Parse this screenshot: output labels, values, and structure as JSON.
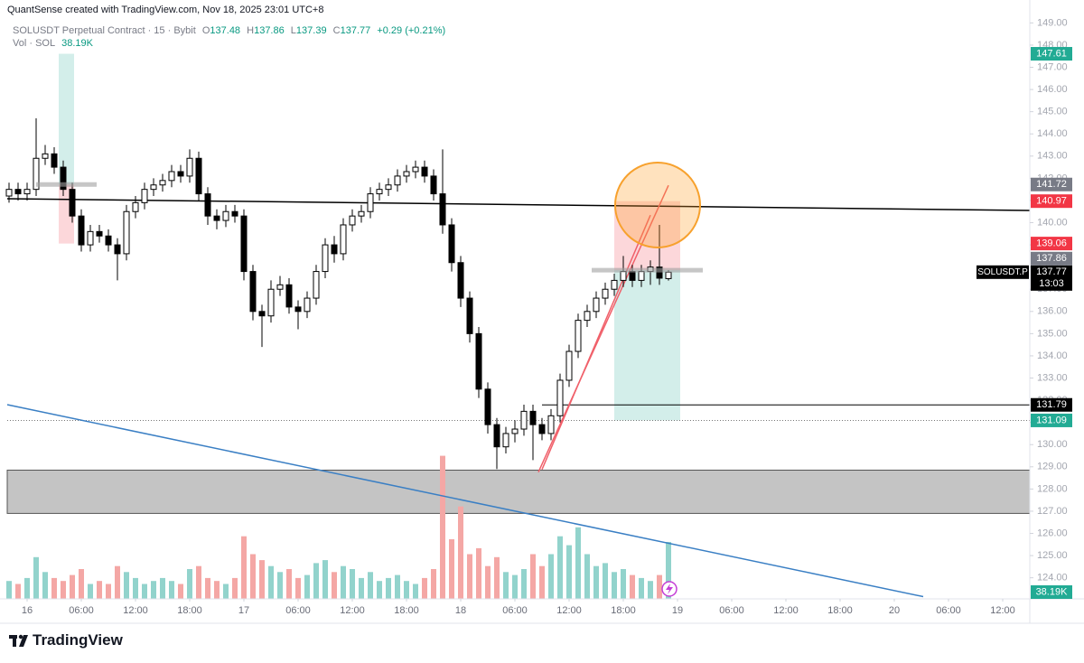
{
  "header": {
    "credit": "QuantSense created with TradingView.com, Nov 18, 2025 23:01 UTC+8"
  },
  "footer": {
    "brand": "TradingView"
  },
  "chart_data": {
    "type": "candlestick",
    "symbol": "SOLUSDT Perpetual Contract · 15 · Bybit",
    "symbol_tag": "SOLUSDT.P",
    "countdown": "13:03",
    "legend_keys": [
      "O",
      "H",
      "L",
      "C"
    ],
    "change": "+0.29 (+0.21%)",
    "x": [
      -2,
      -1,
      0,
      1,
      2,
      3,
      4,
      5,
      6,
      7,
      8,
      9,
      10,
      11,
      12,
      13,
      14,
      15,
      16,
      17,
      18,
      19,
      20,
      21,
      22,
      23,
      24,
      25,
      26,
      27,
      28,
      29,
      30,
      31,
      32,
      33,
      34,
      35,
      36,
      37,
      38,
      39,
      40,
      41,
      42,
      43,
      44,
      45,
      46,
      47,
      48,
      49,
      50,
      51,
      52,
      53,
      54,
      55,
      56,
      57,
      58,
      59,
      60,
      61,
      62,
      63,
      64,
      65,
      66,
      67,
      68,
      69,
      70,
      71
    ],
    "open": [
      141.2,
      141.5,
      141.3,
      141.5,
      142.9,
      143.1,
      142.5,
      141.5,
      140.3,
      139.0,
      139.6,
      139.4,
      139.0,
      138.6,
      140.5,
      140.9,
      141.5,
      141.7,
      141.9,
      142.3,
      142.1,
      142.9,
      141.3,
      140.3,
      140.1,
      140.5,
      140.3,
      137.8,
      136.0,
      135.8,
      137.0,
      137.2,
      136.2,
      136.0,
      136.6,
      137.8,
      139.0,
      138.6,
      139.9,
      140.3,
      140.5,
      141.3,
      141.5,
      141.7,
      142.1,
      142.3,
      142.5,
      142.1,
      141.3,
      139.9,
      138.2,
      136.6,
      135.0,
      132.5,
      130.9,
      129.9,
      130.5,
      130.7,
      131.5,
      130.9,
      130.5,
      131.3,
      132.9,
      134.2,
      135.6,
      136.0,
      136.6,
      137.0,
      137.4,
      137.8,
      137.4,
      137.8,
      138.0,
      137.48
    ],
    "high": [
      141.8,
      141.8,
      141.8,
      144.7,
      143.5,
      143.4,
      142.8,
      141.8,
      140.6,
      139.9,
      139.9,
      139.7,
      139.3,
      140.8,
      141.2,
      141.8,
      142.0,
      142.2,
      142.6,
      142.6,
      143.3,
      143.2,
      141.6,
      140.6,
      140.8,
      140.8,
      140.6,
      138.1,
      136.3,
      137.4,
      137.6,
      137.5,
      136.5,
      136.9,
      138.1,
      139.3,
      139.4,
      140.2,
      140.6,
      140.8,
      141.6,
      141.8,
      142.0,
      142.4,
      142.6,
      142.8,
      142.8,
      142.4,
      143.3,
      140.2,
      138.5,
      136.9,
      135.3,
      132.8,
      131.2,
      130.8,
      131.1,
      131.8,
      131.8,
      131.2,
      131.6,
      133.2,
      134.5,
      135.9,
      136.3,
      136.9,
      137.3,
      137.7,
      138.5,
      138.1,
      138.1,
      138.3,
      139.9,
      137.86
    ],
    "low": [
      140.9,
      141.0,
      141.0,
      141.2,
      142.6,
      142.2,
      141.2,
      140.0,
      138.7,
      138.7,
      139.1,
      138.7,
      137.4,
      138.3,
      140.2,
      140.6,
      141.2,
      141.4,
      141.6,
      141.8,
      141.8,
      141.0,
      139.9,
      139.7,
      139.8,
      140.0,
      137.4,
      135.6,
      134.4,
      135.5,
      136.7,
      135.9,
      135.2,
      135.7,
      136.3,
      137.5,
      138.2,
      138.3,
      139.6,
      140.0,
      140.2,
      141.0,
      141.2,
      141.4,
      141.8,
      142.0,
      141.8,
      141.0,
      139.5,
      137.8,
      136.2,
      134.6,
      132.1,
      130.5,
      128.9,
      129.6,
      130.1,
      130.4,
      129.3,
      130.2,
      130.2,
      131.0,
      132.6,
      133.9,
      135.3,
      135.7,
      136.3,
      136.7,
      137.1,
      137.1,
      137.1,
      137.2,
      137.2,
      137.39
    ],
    "close": [
      141.5,
      141.3,
      141.5,
      142.9,
      143.1,
      142.5,
      141.5,
      140.3,
      139.0,
      139.6,
      139.4,
      139.0,
      138.6,
      140.5,
      140.9,
      141.5,
      141.7,
      141.9,
      142.3,
      142.1,
      142.9,
      141.3,
      140.3,
      140.1,
      140.5,
      140.3,
      137.8,
      136.0,
      135.8,
      137.0,
      137.2,
      136.2,
      136.0,
      136.6,
      137.8,
      139.0,
      138.6,
      139.9,
      140.3,
      140.5,
      141.3,
      141.5,
      141.7,
      142.1,
      142.3,
      142.5,
      142.1,
      141.3,
      139.9,
      138.2,
      136.6,
      135.0,
      132.5,
      130.9,
      129.9,
      130.5,
      130.7,
      131.5,
      130.9,
      130.5,
      131.3,
      132.9,
      134.2,
      135.6,
      136.0,
      136.6,
      137.0,
      137.4,
      137.8,
      137.4,
      137.8,
      138.0,
      137.5,
      137.77
    ],
    "up_color": "#ffffff",
    "down_color": "#000000",
    "wick_color": "#000000",
    "legend_up_color": "#089981",
    "volume": {
      "name": "Vol · SOL",
      "values": [
        12,
        10,
        14,
        28,
        18,
        14,
        12,
        16,
        20,
        10,
        12,
        10,
        22,
        18,
        14,
        10,
        12,
        14,
        12,
        10,
        20,
        22,
        14,
        12,
        10,
        14,
        42,
        30,
        26,
        22,
        18,
        20,
        14,
        16,
        24,
        26,
        18,
        22,
        20,
        14,
        18,
        12,
        14,
        16,
        12,
        10,
        14,
        20,
        96,
        40,
        62,
        30,
        34,
        22,
        28,
        18,
        16,
        20,
        30,
        22,
        30,
        42,
        36,
        48,
        30,
        22,
        24,
        18,
        20,
        16,
        14,
        12,
        16,
        38.19
      ],
      "last_label": "38.19K",
      "up_color": "#92d3cc",
      "down_color": "#f4a7a5",
      "label_color": "#22ab94",
      "vlim": [
        0,
        100
      ]
    },
    "xlim": [
      -2.2,
      111
    ],
    "xticks": [
      {
        "value": 0,
        "label": "16"
      },
      {
        "value": 6,
        "label": "06:00"
      },
      {
        "value": 12,
        "label": "12:00"
      },
      {
        "value": 18,
        "label": "18:00"
      },
      {
        "value": 24,
        "label": "17"
      },
      {
        "value": 30,
        "label": "06:00"
      },
      {
        "value": 36,
        "label": "12:00"
      },
      {
        "value": 42,
        "label": "18:00"
      },
      {
        "value": 48,
        "label": "18"
      },
      {
        "value": 54,
        "label": "06:00"
      },
      {
        "value": 60,
        "label": "12:00"
      },
      {
        "value": 66,
        "label": "18:00"
      },
      {
        "value": 72,
        "label": "19"
      },
      {
        "value": 78,
        "label": "06:00"
      },
      {
        "value": 84,
        "label": "12:00"
      },
      {
        "value": 90,
        "label": "18:00"
      },
      {
        "value": 96,
        "label": "20"
      },
      {
        "value": 102,
        "label": "06:00"
      },
      {
        "value": 108,
        "label": "12:00"
      }
    ],
    "ylim": [
      123.05,
      149.3
    ],
    "yticks": [
      {
        "value": 124,
        "label": "124.00"
      },
      {
        "value": 125,
        "label": "125.00"
      },
      {
        "value": 126,
        "label": "126.00"
      },
      {
        "value": 127,
        "label": "127.00"
      },
      {
        "value": 128,
        "label": "128.00"
      },
      {
        "value": 129,
        "label": "129.00"
      },
      {
        "value": 130,
        "label": "130.00"
      },
      {
        "value": 131,
        "label": "131.00"
      },
      {
        "value": 132,
        "label": "132.00"
      },
      {
        "value": 133,
        "label": "133.00"
      },
      {
        "value": 134,
        "label": "134.00"
      },
      {
        "value": 135,
        "label": "135.00"
      },
      {
        "value": 136,
        "label": "136.00"
      },
      {
        "value": 137,
        "label": "137.00"
      },
      {
        "value": 138,
        "label": "138.00"
      },
      {
        "value": 139,
        "label": "139.00"
      },
      {
        "value": 140,
        "label": "140.00"
      },
      {
        "value": 141,
        "label": "141.00"
      },
      {
        "value": 142,
        "label": "142.00"
      },
      {
        "value": 143,
        "label": "143.00"
      },
      {
        "value": 144,
        "label": "144.00"
      },
      {
        "value": 145,
        "label": "145.00"
      },
      {
        "value": 146,
        "label": "146.00"
      },
      {
        "value": 147,
        "label": "147.00"
      },
      {
        "value": 148,
        "label": "148.00"
      },
      {
        "value": 149,
        "label": "149.00"
      }
    ],
    "grid": false,
    "profit_color": "#22ab94",
    "loss_color": "#f23645",
    "entry_color": "#787b86",
    "positions": [
      {
        "span": [
          3.5,
          5.2
        ],
        "target": 147.61,
        "entry": 141.72,
        "stop": 139.06
      },
      {
        "span": [
          65,
          72.3
        ],
        "target": 131.09,
        "entry": 137.86,
        "stop": 140.97,
        "target_line": "dotted"
      }
    ],
    "price_labels": [
      {
        "value": 131.79,
        "color": "#000000",
        "line_from": 57
      }
    ],
    "zones": [
      {
        "from": 126.9,
        "to": 128.85,
        "color": "#c4c4c4"
      }
    ],
    "trendlines": [
      {
        "color": "#000000",
        "points": [
          [
            -2.2,
            141.08
          ],
          [
            111,
            140.55
          ]
        ]
      },
      {
        "color": "#3a7fc4",
        "points": [
          [
            -2.2,
            131.8
          ],
          [
            99.2,
            123.15
          ]
        ]
      },
      {
        "color": "#f0606a",
        "points": [
          [
            56.6,
            128.76
          ],
          [
            71,
            141.68
          ]
        ]
      },
      {
        "color": "#f0606a",
        "points": [
          [
            57,
            128.88
          ],
          [
            69,
            140.34
          ]
        ]
      }
    ]
  }
}
